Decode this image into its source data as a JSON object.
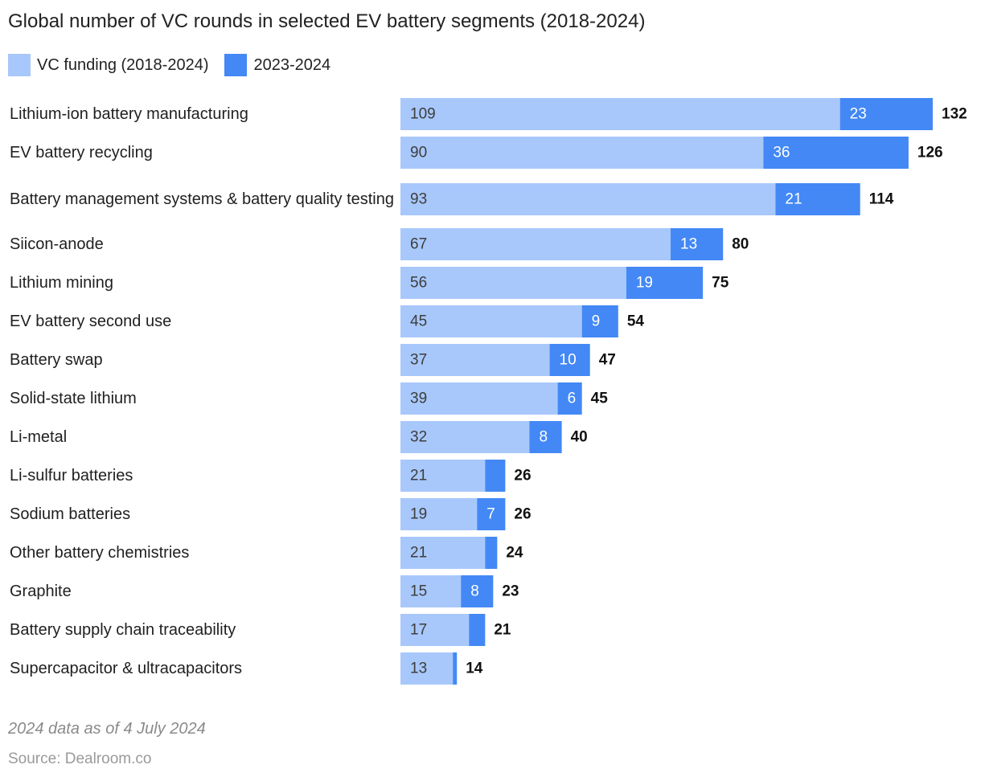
{
  "chart_data": {
    "type": "bar",
    "orientation": "horizontal",
    "stacked": true,
    "title": "Global number of VC rounds in selected EV battery segments (2018-2024)",
    "categories": [
      "Lithium-ion battery manufacturing",
      "EV battery recycling",
      "Battery management systems & battery quality testing",
      "Siicon-anode",
      "Lithium mining",
      "EV battery second use",
      "Battery swap",
      "Solid-state lithium",
      "Li-metal",
      "Li-sulfur batteries",
      "Sodium batteries",
      "Other battery chemistries",
      "Graphite",
      "Battery supply chain traceability",
      "Supercapacitor & ultracapacitors"
    ],
    "series": [
      {
        "name": "VC funding (2018-2024)",
        "color": "#a8c8fb",
        "label_color": "#3d3d3d",
        "values": [
          109,
          90,
          93,
          67,
          56,
          45,
          37,
          39,
          32,
          21,
          19,
          21,
          15,
          17,
          13
        ]
      },
      {
        "name": "2023-2024",
        "color": "#4388f5",
        "label_color": "#ffffff",
        "values": [
          23,
          36,
          21,
          13,
          19,
          9,
          10,
          6,
          8,
          5,
          7,
          3,
          8,
          4,
          1
        ],
        "labels": [
          "23",
          "36",
          "21",
          "13",
          "19",
          "9",
          "10",
          "6",
          "8",
          "",
          "7",
          "",
          "8",
          "",
          ""
        ]
      }
    ],
    "totals": [
      132,
      126,
      114,
      80,
      75,
      54,
      47,
      45,
      40,
      26,
      26,
      24,
      23,
      21,
      14
    ],
    "xlim": [
      0,
      132
    ],
    "grid": false,
    "legend_position": "top-left"
  },
  "footnote": "2024 data as of 4 July 2024",
  "source": "Source: Dealroom.co"
}
